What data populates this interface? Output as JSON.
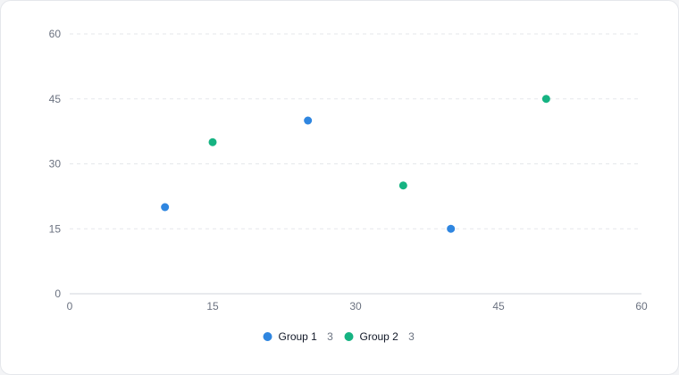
{
  "chart_data": {
    "type": "scatter",
    "xlim": [
      0,
      60
    ],
    "ylim": [
      0,
      60
    ],
    "xticks": [
      0,
      15,
      30,
      45,
      60
    ],
    "yticks": [
      0,
      15,
      30,
      45,
      60
    ],
    "grid": "horizontal-dashed",
    "legend_position": "bottom-center",
    "series": [
      {
        "name": "Group 1",
        "count": "3",
        "color": "#2f86e0",
        "points": [
          {
            "x": 10,
            "y": 20
          },
          {
            "x": 25,
            "y": 40
          },
          {
            "x": 40,
            "y": 15
          }
        ]
      },
      {
        "name": "Group 2",
        "count": "3",
        "color": "#16b382",
        "points": [
          {
            "x": 15,
            "y": 35
          },
          {
            "x": 35,
            "y": 25
          },
          {
            "x": 50,
            "y": 45
          }
        ]
      }
    ]
  }
}
